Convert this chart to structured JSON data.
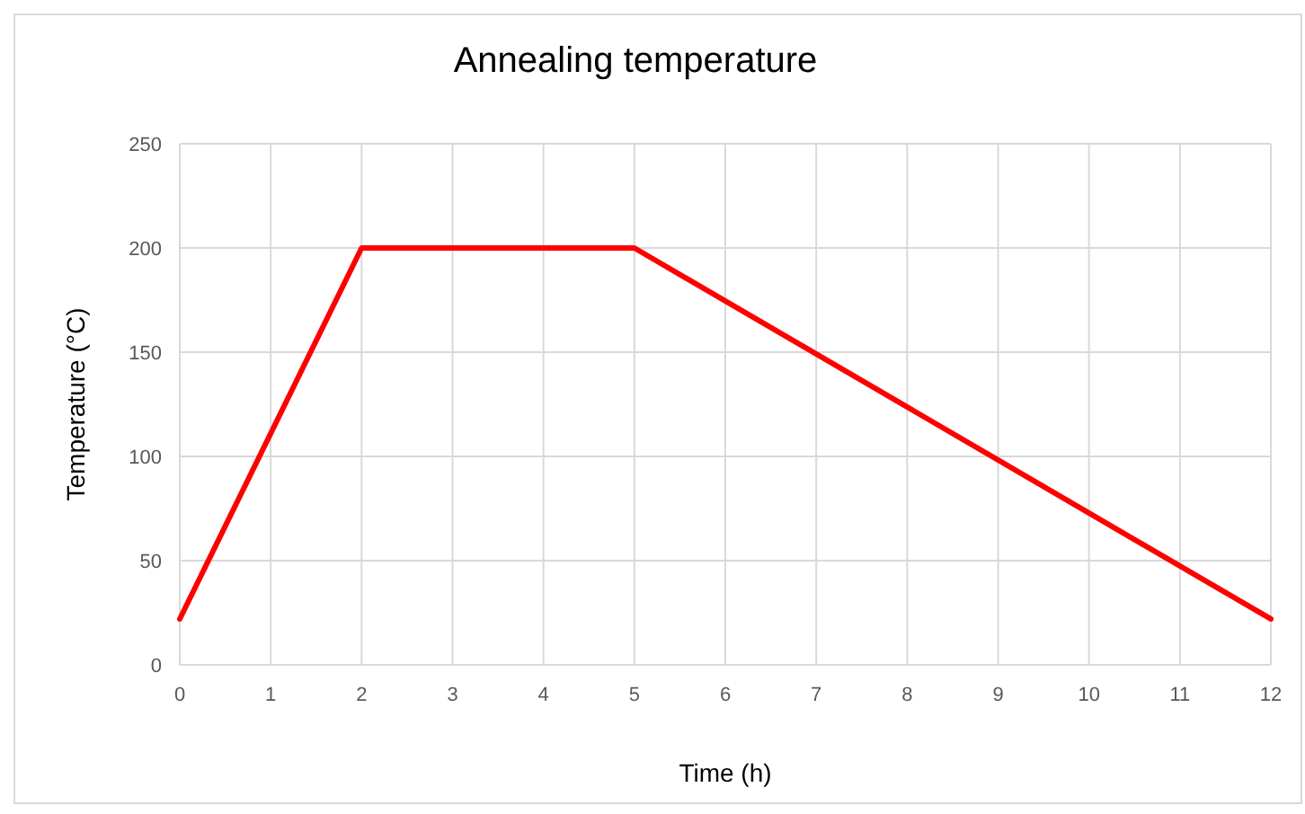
{
  "chart_data": {
    "type": "line",
    "title": "Annealing temperature",
    "xlabel": "Time (h)",
    "ylabel": "Temperature (°C)",
    "x": [
      0,
      2,
      5,
      12
    ],
    "series": [
      {
        "color": "#ff0000",
        "values": [
          22,
          200,
          200,
          22
        ]
      }
    ],
    "xlim": [
      0,
      12
    ],
    "xticks": [
      0,
      1,
      2,
      3,
      4,
      5,
      6,
      7,
      8,
      9,
      10,
      11,
      12
    ],
    "ylim": [
      0,
      250
    ],
    "yticks": [
      0,
      50,
      100,
      150,
      200,
      250
    ],
    "grid": true,
    "marker": "none",
    "line_style": "solid"
  }
}
